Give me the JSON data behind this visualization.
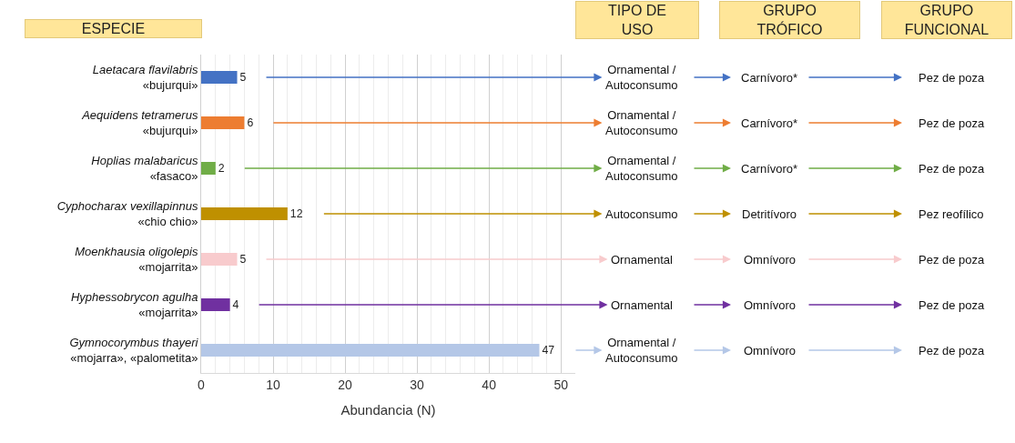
{
  "chart_data": {
    "type": "bar",
    "orientation": "horizontal",
    "xlabel": "Abundancia (N)",
    "categories": [
      "Laetacara flavilabris\n«bujurqui»",
      "Aequidens tetramerus\n«bujurqui»",
      "Hoplias malabaricus\n«fasaco»",
      "Cyphocharax vexillapinnus\n«chio chio»",
      "Moenkhausia oligolepis\n«mojarrita»",
      "Hyphessobrycon agulha\n«mojarrita»",
      "Gymnocorymbus thayeri\n«mojarra», «palometita»"
    ],
    "values": [
      5,
      6,
      2,
      12,
      5,
      4,
      47
    ],
    "colors": [
      "#4472c4",
      "#ed7d31",
      "#70ad47",
      "#bf9000",
      "#f8cbcd",
      "#7030a0",
      "#b4c7e7"
    ],
    "data_labels": true,
    "xlim": [
      0,
      52
    ],
    "xticks": [
      0,
      10,
      20,
      30,
      40,
      50
    ],
    "grid": "x",
    "annotations": [
      "ESPECIE",
      "TIPO DE\nUSO",
      "GRUPO\nTRÓFICO",
      "GRUPO\nFUNCIONAL",
      {
        "text": "Ornamental /\nAutoconsumo",
        "x": 5,
        "y": "Laetacara flavilabris\n«bujurqui»"
      },
      "Carnívoro*",
      "Pez de poza",
      {
        "text": "Ornamental /\nAutoconsumo",
        "x": 6,
        "y": "Aequidens tetramerus\n«bujurqui»"
      },
      "Carnívoro*",
      "Pez de poza",
      {
        "text": "Ornamental /\nAutoconsumo",
        "x": 2,
        "y": "Hoplias malabaricus\n«fasaco»"
      },
      "Carnívoro*",
      "Pez de poza",
      {
        "text": "Autoconsumo",
        "x": 12,
        "y": "Cyphocharax vexillapinnus\n«chio chio»"
      },
      "Detritívoro",
      "Pez reofílico",
      {
        "text": "Ornamental",
        "x": 5,
        "y": "Moenkhausia oligolepis\n«mojarrita»"
      },
      "Omnívoro",
      "Pez de poza",
      {
        "text": "Ornamental",
        "x": 4,
        "y": "Hyphessobrycon agulha\n«mojarrita»"
      },
      "Omnívoro",
      "Pez de poza",
      {
        "text": "Ornamental /\nAutoconsumo",
        "x": 47,
        "y": "Gymnocorymbus thayeri\n«mojarra», «palometita»"
      },
      "Omnívoro",
      "Pez de poza"
    ]
  }
}
